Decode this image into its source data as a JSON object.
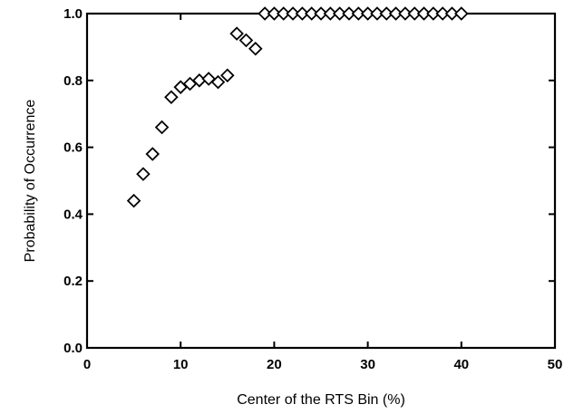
{
  "chart_data": {
    "type": "scatter",
    "title": "",
    "xlabel": "Center of the RTS Bin (%)",
    "ylabel": "Probability of Occurrence",
    "xlim": [
      0,
      50
    ],
    "ylim": [
      0.0,
      1.0
    ],
    "xticks": [
      0,
      10,
      20,
      30,
      40,
      50
    ],
    "xtick_labels": [
      "0",
      "10",
      "20",
      "30",
      "40",
      "50"
    ],
    "yticks": [
      0.0,
      0.2,
      0.4,
      0.6,
      0.8,
      1.0
    ],
    "ytick_labels": [
      "0.0",
      "0.2",
      "0.4",
      "0.6",
      "0.8",
      "1.0"
    ],
    "grid": false,
    "legend": "none",
    "marker": "diamond-open",
    "series": [
      {
        "x": [
          5,
          6,
          7,
          8,
          9,
          10,
          11,
          12,
          13,
          14,
          15,
          16,
          17,
          18,
          19,
          20,
          21,
          22,
          23,
          24,
          25,
          26,
          27,
          28,
          29,
          30,
          31,
          32,
          33,
          34,
          35,
          36,
          37,
          38,
          39,
          40
        ],
        "y": [
          0.44,
          0.52,
          0.58,
          0.66,
          0.75,
          0.78,
          0.79,
          0.8,
          0.805,
          0.795,
          0.815,
          0.94,
          0.92,
          0.895,
          1.0,
          1.0,
          1.0,
          1.0,
          1.0,
          1.0,
          1.0,
          1.0,
          1.0,
          1.0,
          1.0,
          1.0,
          1.0,
          1.0,
          1.0,
          1.0,
          1.0,
          1.0,
          1.0,
          1.0,
          1.0,
          1.0
        ]
      }
    ]
  }
}
